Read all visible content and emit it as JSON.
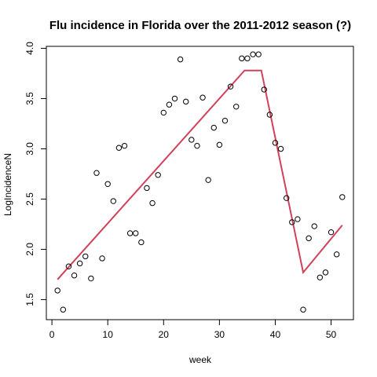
{
  "chart_data": {
    "type": "scatter",
    "title": "Flu incidence in Florida over the 2011-2012 season (?)",
    "xlabel": "week",
    "ylabel": "LogIncidenceN",
    "xlim": [
      -1,
      54
    ],
    "ylim": [
      1.3,
      4.02
    ],
    "xticks": [
      0,
      10,
      20,
      30,
      40,
      50
    ],
    "yticks": [
      1.5,
      2.0,
      2.5,
      3.0,
      3.5,
      4.0
    ],
    "ytick_labels": [
      "1.5",
      "2.0",
      "2.5",
      "3.0",
      "3.5",
      "4.0"
    ],
    "grid": false,
    "point_color": "#000000",
    "line_color": "#D1415A",
    "series": [
      {
        "type": "points",
        "x": [
          1,
          2,
          3,
          4,
          5,
          6,
          7,
          8,
          9,
          10,
          11,
          12,
          13,
          14,
          15,
          16,
          17,
          18,
          19,
          20,
          21,
          22,
          23,
          24,
          25,
          26,
          27,
          28,
          29,
          30,
          31,
          32,
          33,
          34,
          35,
          36,
          37,
          38,
          39,
          40,
          41,
          42,
          43,
          44,
          45,
          46,
          47,
          48,
          49,
          50,
          51,
          52
        ],
        "y": [
          1.59,
          1.4,
          1.83,
          1.74,
          1.86,
          1.93,
          1.71,
          2.76,
          1.91,
          2.65,
          2.48,
          3.01,
          3.03,
          2.16,
          2.16,
          2.07,
          2.61,
          2.46,
          2.74,
          3.36,
          3.44,
          3.5,
          3.89,
          3.47,
          3.09,
          3.03,
          3.51,
          2.69,
          3.21,
          3.04,
          3.28,
          3.62,
          3.42,
          3.9,
          3.9,
          3.94,
          3.94,
          3.59,
          3.34,
          3.06,
          3.0,
          2.51,
          2.27,
          2.3,
          1.4,
          2.11,
          2.23,
          1.72,
          1.77,
          2.17,
          1.95,
          2.52
        ]
      },
      {
        "type": "line",
        "x": [
          1,
          34.5,
          37.5,
          45,
          52
        ],
        "y": [
          1.7,
          3.78,
          3.78,
          1.77,
          2.24
        ]
      }
    ]
  }
}
